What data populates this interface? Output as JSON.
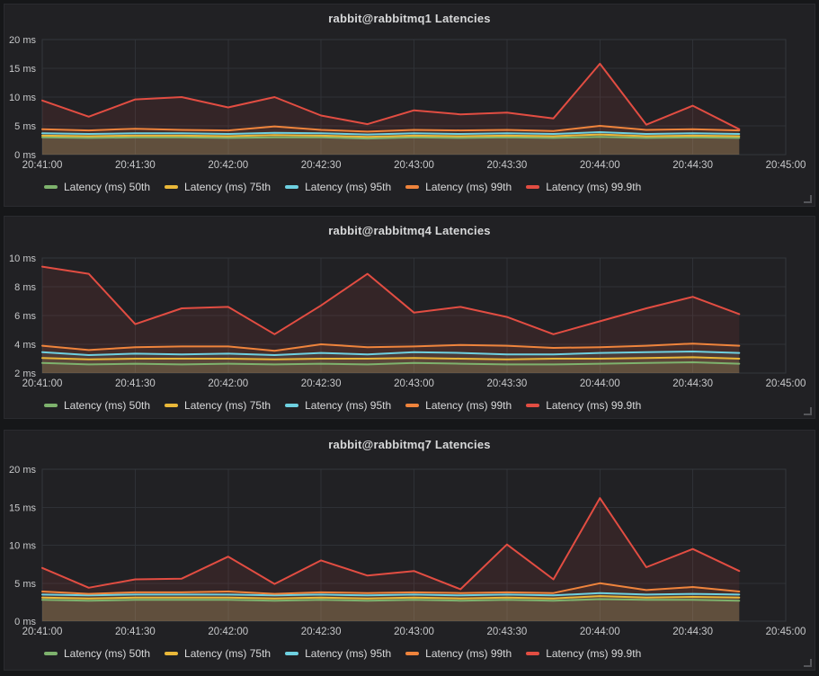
{
  "theme": {
    "page_bg": "#161719",
    "panel_bg": "#212124",
    "panel_border": "#2a2b2f",
    "grid": "#2e3136",
    "grid_border": "#34373c",
    "text_primary": "#d8d9da",
    "text_axis": "#c7c8ca",
    "series_fill_opacity": 0.1
  },
  "chart_data": [
    {
      "type": "area",
      "title": "rabbit@rabbitmq1 Latencies",
      "xlabel": "",
      "ylabel": "",
      "ylim": [
        0,
        20
      ],
      "y_tick_values": [
        0,
        5,
        10,
        15,
        20
      ],
      "y_tick_labels": [
        "0 ms",
        "5 ms",
        "10 ms",
        "15 ms",
        "20 ms"
      ],
      "x_tick_labels": [
        "20:41:00",
        "20:41:30",
        "20:42:00",
        "20:42:30",
        "20:43:00",
        "20:43:30",
        "20:44:00",
        "20:44:30",
        "20:45:00"
      ],
      "x_total_intervals": 16,
      "x_interval_seconds": 15,
      "grid": true,
      "legend_position": "bottom",
      "series": [
        {
          "name": "Latency (ms) 50th",
          "color": "#7EB26D",
          "values": [
            3.0,
            2.9,
            3.0,
            3.0,
            2.9,
            3.0,
            3.0,
            2.8,
            3.0,
            2.9,
            3.0,
            2.9,
            3.1,
            2.9,
            3.0,
            2.9
          ]
        },
        {
          "name": "Latency (ms) 75th",
          "color": "#EAB839",
          "values": [
            3.3,
            3.2,
            3.3,
            3.3,
            3.2,
            3.4,
            3.3,
            3.1,
            3.3,
            3.2,
            3.3,
            3.2,
            3.5,
            3.2,
            3.3,
            3.2
          ]
        },
        {
          "name": "Latency (ms) 95th",
          "color": "#6ED0E0",
          "values": [
            3.7,
            3.6,
            3.7,
            3.7,
            3.6,
            3.8,
            3.7,
            3.5,
            3.7,
            3.6,
            3.7,
            3.6,
            3.9,
            3.6,
            3.7,
            3.6
          ]
        },
        {
          "name": "Latency (ms) 99th",
          "color": "#EF843C",
          "values": [
            4.4,
            4.2,
            4.5,
            4.3,
            4.2,
            4.9,
            4.3,
            4.0,
            4.3,
            4.2,
            4.3,
            4.1,
            5.0,
            4.3,
            4.4,
            4.2
          ]
        },
        {
          "name": "Latency (ms) 99.9th",
          "color": "#E24D42",
          "values": [
            9.4,
            6.6,
            9.6,
            10.0,
            8.2,
            10.0,
            6.8,
            5.3,
            7.7,
            7.0,
            7.3,
            6.3,
            15.8,
            5.2,
            8.5,
            4.4
          ]
        }
      ]
    },
    {
      "type": "area",
      "title": "rabbit@rabbitmq4 Latencies",
      "xlabel": "",
      "ylabel": "",
      "ylim": [
        2,
        10
      ],
      "y_tick_values": [
        2,
        4,
        6,
        8,
        10
      ],
      "y_tick_labels": [
        "2 ms",
        "4 ms",
        "6 ms",
        "8 ms",
        "10 ms"
      ],
      "x_tick_labels": [
        "20:41:00",
        "20:41:30",
        "20:42:00",
        "20:42:30",
        "20:43:00",
        "20:43:30",
        "20:44:00",
        "20:44:30",
        "20:45:00"
      ],
      "x_total_intervals": 16,
      "x_interval_seconds": 15,
      "grid": true,
      "legend_position": "bottom",
      "series": [
        {
          "name": "Latency (ms) 50th",
          "color": "#7EB26D",
          "values": [
            2.7,
            2.6,
            2.65,
            2.6,
            2.65,
            2.6,
            2.65,
            2.6,
            2.7,
            2.65,
            2.6,
            2.6,
            2.65,
            2.7,
            2.75,
            2.65
          ]
        },
        {
          "name": "Latency (ms) 75th",
          "color": "#EAB839",
          "values": [
            3.05,
            2.95,
            3.0,
            3.0,
            3.0,
            2.95,
            3.0,
            3.0,
            3.05,
            3.0,
            2.95,
            3.0,
            3.0,
            3.05,
            3.1,
            3.0
          ]
        },
        {
          "name": "Latency (ms) 95th",
          "color": "#6ED0E0",
          "values": [
            3.45,
            3.25,
            3.35,
            3.3,
            3.35,
            3.25,
            3.4,
            3.3,
            3.45,
            3.4,
            3.3,
            3.3,
            3.4,
            3.45,
            3.5,
            3.4
          ]
        },
        {
          "name": "Latency (ms) 99th",
          "color": "#EF843C",
          "values": [
            3.9,
            3.6,
            3.8,
            3.85,
            3.85,
            3.55,
            4.0,
            3.8,
            3.85,
            3.95,
            3.9,
            3.75,
            3.8,
            3.9,
            4.05,
            3.9
          ]
        },
        {
          "name": "Latency (ms) 99.9th",
          "color": "#E24D42",
          "values": [
            9.4,
            8.9,
            5.4,
            6.5,
            6.6,
            4.7,
            6.7,
            8.9,
            6.2,
            6.6,
            5.9,
            4.7,
            5.6,
            6.5,
            7.3,
            6.1
          ]
        }
      ]
    },
    {
      "type": "area",
      "title": "rabbit@rabbitmq7 Latencies",
      "xlabel": "",
      "ylabel": "",
      "ylim": [
        0,
        20
      ],
      "y_tick_values": [
        0,
        5,
        10,
        15,
        20
      ],
      "y_tick_labels": [
        "0 ms",
        "5 ms",
        "10 ms",
        "15 ms",
        "20 ms"
      ],
      "x_tick_labels": [
        "20:41:00",
        "20:41:30",
        "20:42:00",
        "20:42:30",
        "20:43:00",
        "20:43:30",
        "20:44:00",
        "20:44:30",
        "20:45:00"
      ],
      "x_total_intervals": 16,
      "x_interval_seconds": 15,
      "grid": true,
      "legend_position": "bottom",
      "series": [
        {
          "name": "Latency (ms) 50th",
          "color": "#7EB26D",
          "values": [
            2.8,
            2.7,
            2.8,
            2.8,
            2.8,
            2.7,
            2.8,
            2.7,
            2.8,
            2.7,
            2.8,
            2.7,
            2.9,
            2.8,
            2.8,
            2.7
          ]
        },
        {
          "name": "Latency (ms) 75th",
          "color": "#EAB839",
          "values": [
            3.1,
            3.0,
            3.1,
            3.1,
            3.1,
            3.0,
            3.1,
            3.0,
            3.1,
            3.0,
            3.1,
            3.0,
            3.3,
            3.1,
            3.2,
            3.1
          ]
        },
        {
          "name": "Latency (ms) 95th",
          "color": "#6ED0E0",
          "values": [
            3.5,
            3.4,
            3.5,
            3.5,
            3.5,
            3.4,
            3.5,
            3.4,
            3.5,
            3.4,
            3.5,
            3.4,
            3.7,
            3.5,
            3.6,
            3.5
          ]
        },
        {
          "name": "Latency (ms) 99th",
          "color": "#EF843C",
          "values": [
            3.9,
            3.6,
            3.8,
            3.8,
            3.9,
            3.6,
            3.8,
            3.7,
            3.8,
            3.7,
            3.8,
            3.7,
            5.0,
            4.1,
            4.5,
            3.9
          ]
        },
        {
          "name": "Latency (ms) 99.9th",
          "color": "#E24D42",
          "values": [
            7.0,
            4.4,
            5.5,
            5.6,
            8.5,
            4.9,
            8.0,
            6.0,
            6.6,
            4.2,
            10.1,
            5.5,
            16.2,
            7.1,
            9.5,
            6.6
          ]
        }
      ]
    }
  ]
}
